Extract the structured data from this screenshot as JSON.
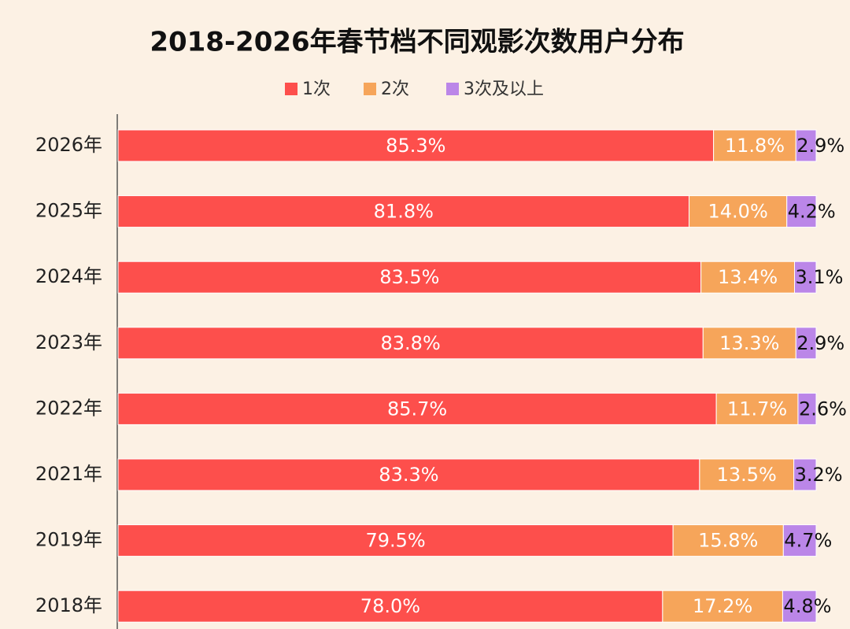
{
  "chart_data": {
    "type": "stacked-bar-horizontal",
    "title": "2018-2026年春节档不同观影次数用户分布",
    "categories": [
      "2026年",
      "2025年",
      "2024年",
      "2023年",
      "2022年",
      "2021年",
      "2019年",
      "2018年"
    ],
    "series": [
      {
        "name": "1次",
        "color": "#fd4f4c",
        "values": [
          85.3,
          81.8,
          83.5,
          83.8,
          85.7,
          83.3,
          79.5,
          78.0
        ],
        "value_labels": [
          "85.3%",
          "81.8%",
          "83.5%",
          "83.8%",
          "85.7%",
          "83.3%",
          "79.5%",
          "78.0%"
        ]
      },
      {
        "name": "2次",
        "color": "#f6a55a",
        "values": [
          11.8,
          14.0,
          13.4,
          13.3,
          11.7,
          13.5,
          15.8,
          17.2
        ],
        "value_labels": [
          "11.8%",
          "14.0%",
          "13.4%",
          "13.3%",
          "11.7%",
          "13.5%",
          "15.8%",
          "17.2%"
        ]
      },
      {
        "name": "3次及以上",
        "color": "#bb86e8",
        "values": [
          2.9,
          4.2,
          3.1,
          2.9,
          2.6,
          3.2,
          4.7,
          4.8
        ],
        "value_labels": [
          "2.9%",
          "4.2%",
          "3.1%",
          "2.9%",
          "2.6%",
          "3.2%",
          "4.7%",
          "4.8%"
        ]
      }
    ],
    "xlim": [
      0,
      100
    ]
  }
}
